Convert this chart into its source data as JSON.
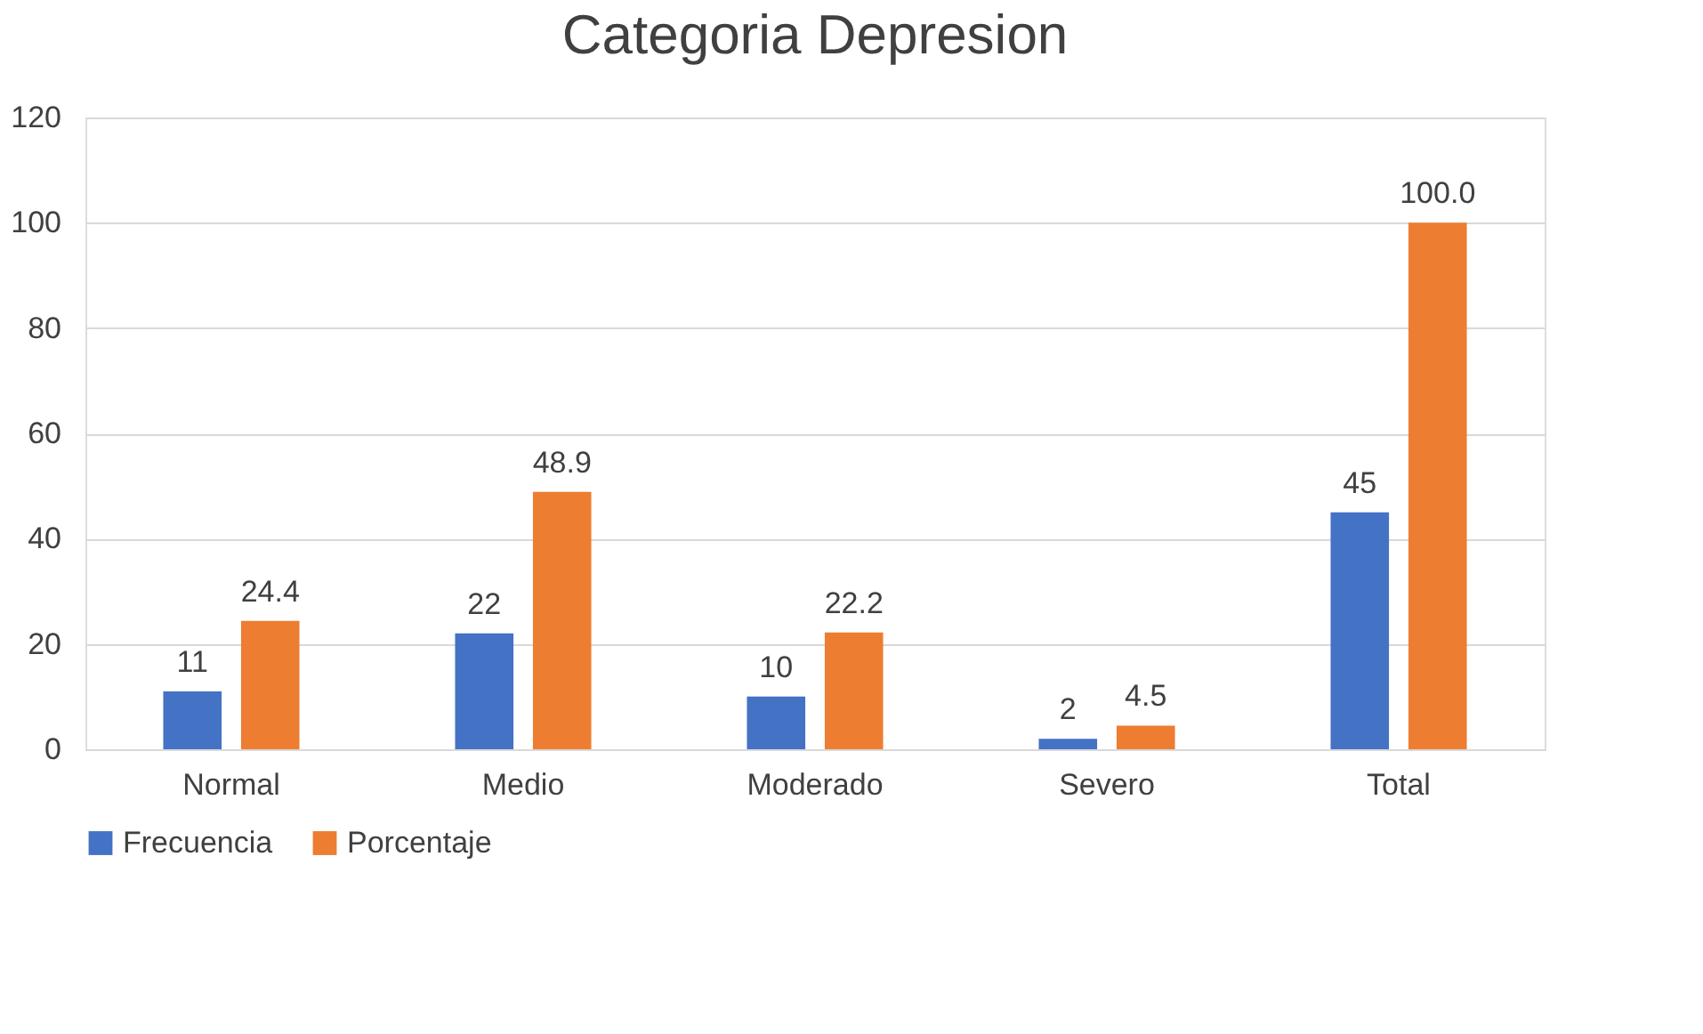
{
  "chart_data": {
    "type": "bar",
    "title": "Categoria Depresion",
    "categories": [
      "Normal",
      "Medio",
      "Moderado",
      "Severo",
      "Total"
    ],
    "series": [
      {
        "name": "Frecuencia",
        "color": "#4472c4",
        "values": [
          11,
          22,
          10,
          2,
          45
        ],
        "value_labels": [
          "11",
          "22",
          "10",
          "2",
          "45"
        ]
      },
      {
        "name": "Porcentaje",
        "color": "#ed7d31",
        "values": [
          24.4,
          48.9,
          22.2,
          4.5,
          100.0
        ],
        "value_labels": [
          "24.4",
          "48.9",
          "22.2",
          "4.5",
          "100.0"
        ]
      }
    ],
    "ylim": [
      0,
      120
    ],
    "yticks": [
      0,
      20,
      40,
      60,
      80,
      100,
      120
    ],
    "grid": "y",
    "legend": "bottom"
  }
}
